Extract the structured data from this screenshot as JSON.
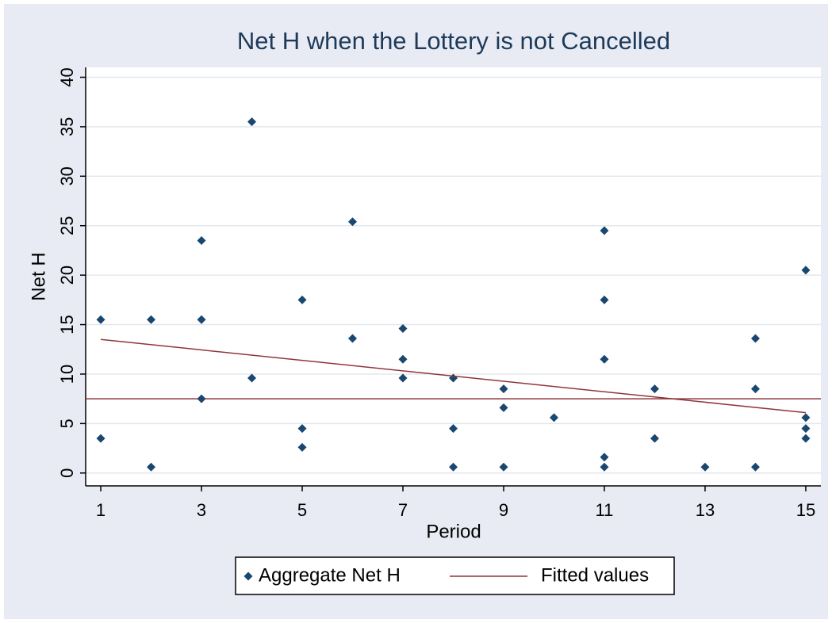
{
  "chart_data": {
    "type": "scatter",
    "title": "Net H when the Lottery is not Cancelled",
    "x_label": "Period",
    "y_label": "Net H",
    "xlim": [
      0.7,
      15.3
    ],
    "ylim": [
      -1.3,
      41
    ],
    "xticks": [
      1,
      3,
      5,
      7,
      9,
      11,
      13,
      15
    ],
    "yticks": [
      0,
      5,
      10,
      15,
      20,
      25,
      30,
      35,
      40
    ],
    "grid": true,
    "legend": "bottom",
    "series": [
      {
        "name": "Aggregate Net H",
        "type": "scatter",
        "color": "#1a476f",
        "x": [
          1,
          1,
          2,
          2,
          3,
          3,
          3,
          4,
          4,
          5,
          5,
          5,
          6,
          6,
          7,
          7,
          7,
          8,
          8,
          8,
          9,
          9,
          9,
          10,
          11,
          11,
          11,
          11,
          11,
          12,
          12,
          13,
          14,
          14,
          14,
          15,
          15,
          15,
          15
        ],
        "values": [
          15.5,
          3.5,
          15.5,
          0.6,
          23.5,
          15.5,
          7.5,
          35.5,
          9.6,
          17.5,
          4.5,
          2.6,
          25.4,
          13.6,
          14.6,
          11.5,
          9.6,
          9.6,
          4.5,
          0.6,
          8.5,
          6.6,
          0.6,
          5.6,
          24.5,
          17.5,
          11.5,
          1.6,
          0.6,
          8.5,
          3.5,
          0.6,
          13.6,
          8.5,
          0.6,
          20.5,
          5.6,
          4.5,
          3.5
        ]
      },
      {
        "name": "Fitted values",
        "type": "line",
        "color": "#90353b",
        "x": [
          1,
          15
        ],
        "values": [
          13.5,
          6.1
        ]
      }
    ],
    "hline": {
      "value": 7.5,
      "color": "#90353b"
    }
  }
}
